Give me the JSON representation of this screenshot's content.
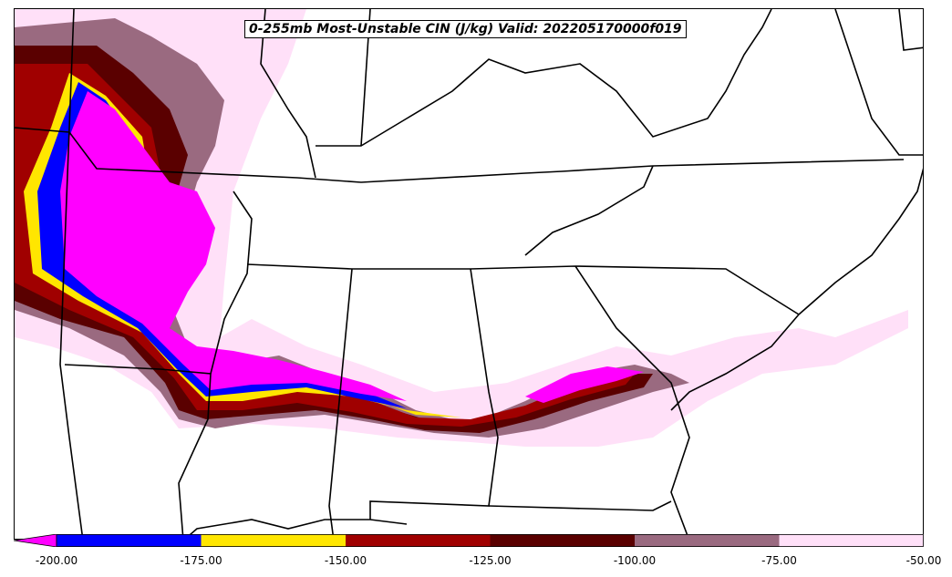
{
  "title": "0-255mb Most-Unstable CIN (J/kg) Valid: 202205170000f019",
  "colorbar": {
    "levels": [
      "-200.00",
      "-175.00",
      "-150.00",
      "-125.00",
      "-100.00",
      "-75.00",
      "-50.00"
    ],
    "colors": [
      "#ff00ff",
      "#0000ff",
      "#ffe600",
      "#a00000",
      "#5a0000",
      "#9a6a80",
      "#ffe0f8"
    ],
    "extend": "min"
  },
  "map": {
    "region": "Southeastern United States",
    "boundaries": [
      "state",
      "coastline"
    ],
    "shading_colors": {
      "lt_-200": "#ff00ff",
      "-200_-175": "#0000ff",
      "-175_-150": "#ffe600",
      "-150_-125": "#a00000",
      "-125_-100": "#5a0000",
      "-100_-75": "#9a6a80",
      "-75_-50": "#ffe0f8"
    }
  }
}
